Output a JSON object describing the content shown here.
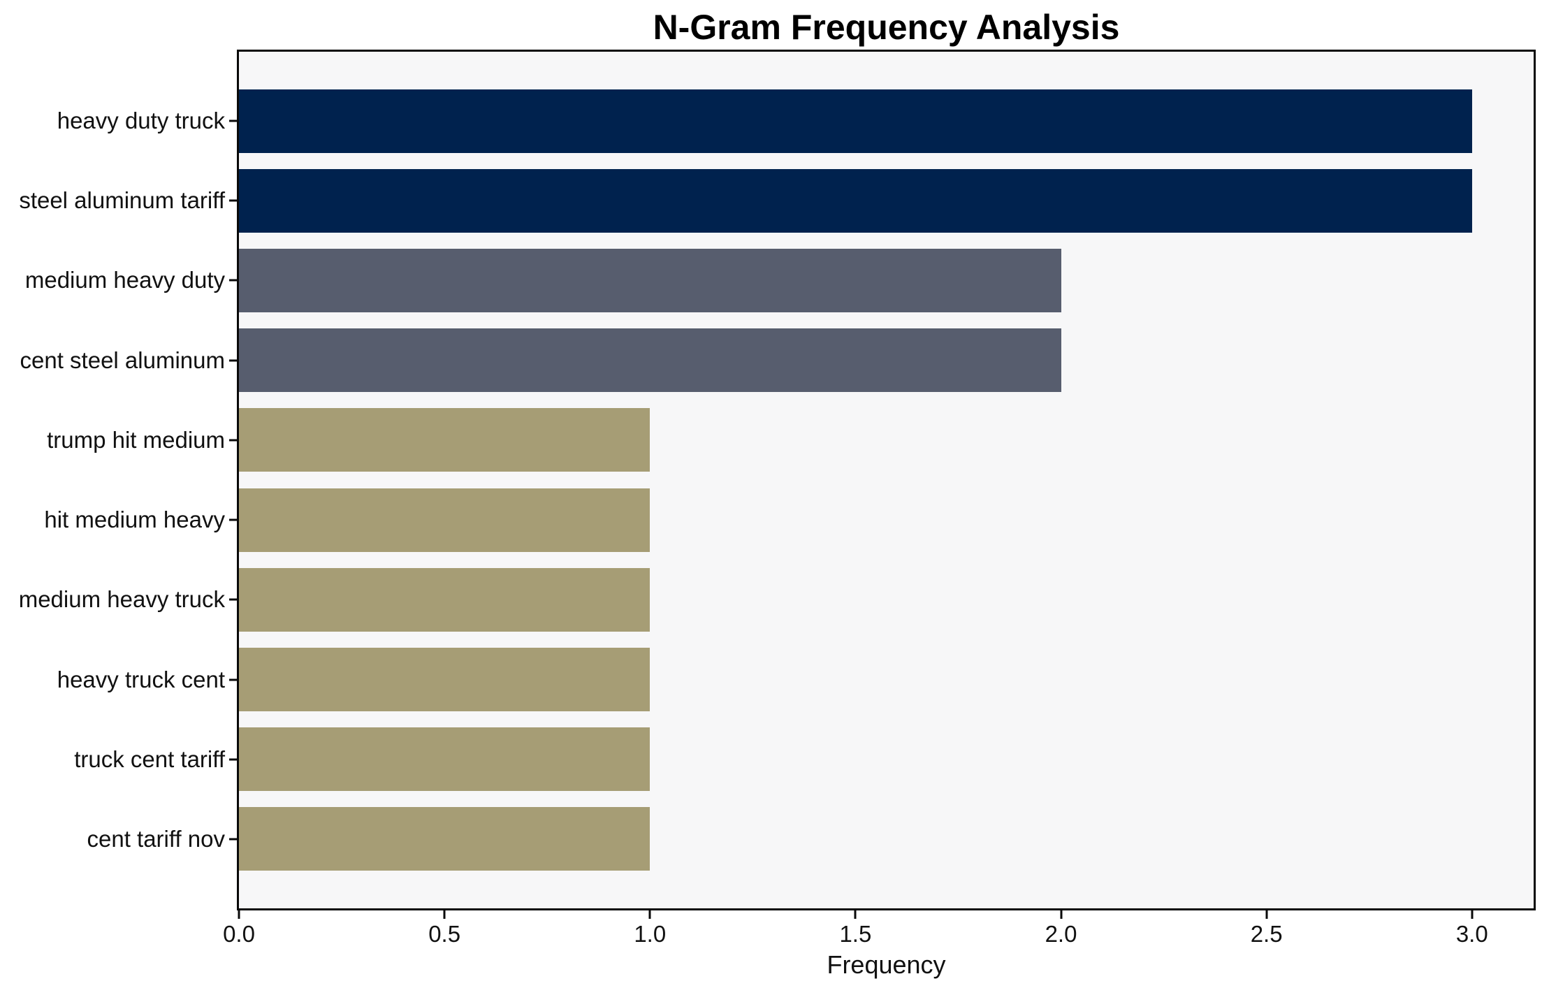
{
  "chart_data": {
    "type": "bar",
    "orientation": "horizontal",
    "title": "N-Gram Frequency Analysis",
    "xlabel": "Frequency",
    "ylabel": "",
    "categories": [
      "heavy duty truck",
      "steel aluminum tariff",
      "medium heavy duty",
      "cent steel aluminum",
      "trump hit medium",
      "hit medium heavy",
      "medium heavy truck",
      "heavy truck cent",
      "truck cent tariff",
      "cent tariff nov"
    ],
    "values": [
      3,
      3,
      2,
      2,
      1,
      1,
      1,
      1,
      1,
      1
    ],
    "bar_colors": [
      "#00224e",
      "#00224e",
      "#575d6e",
      "#575d6e",
      "#a69d75",
      "#a69d75",
      "#a69d75",
      "#a69d75",
      "#a69d75",
      "#a69d75"
    ],
    "xlim": [
      0,
      3.15
    ],
    "x_ticks": [
      {
        "label": "0.0",
        "value": 0.0
      },
      {
        "label": "0.5",
        "value": 0.5
      },
      {
        "label": "1.0",
        "value": 1.0
      },
      {
        "label": "1.5",
        "value": 1.5
      },
      {
        "label": "2.0",
        "value": 2.0
      },
      {
        "label": "2.5",
        "value": 2.5
      },
      {
        "label": "3.0",
        "value": 3.0
      }
    ],
    "grid": false,
    "legend": null,
    "plot_bg": "#f7f7f8",
    "fig_bg": "#ffffff",
    "spine_color": "#0a0a0a"
  }
}
